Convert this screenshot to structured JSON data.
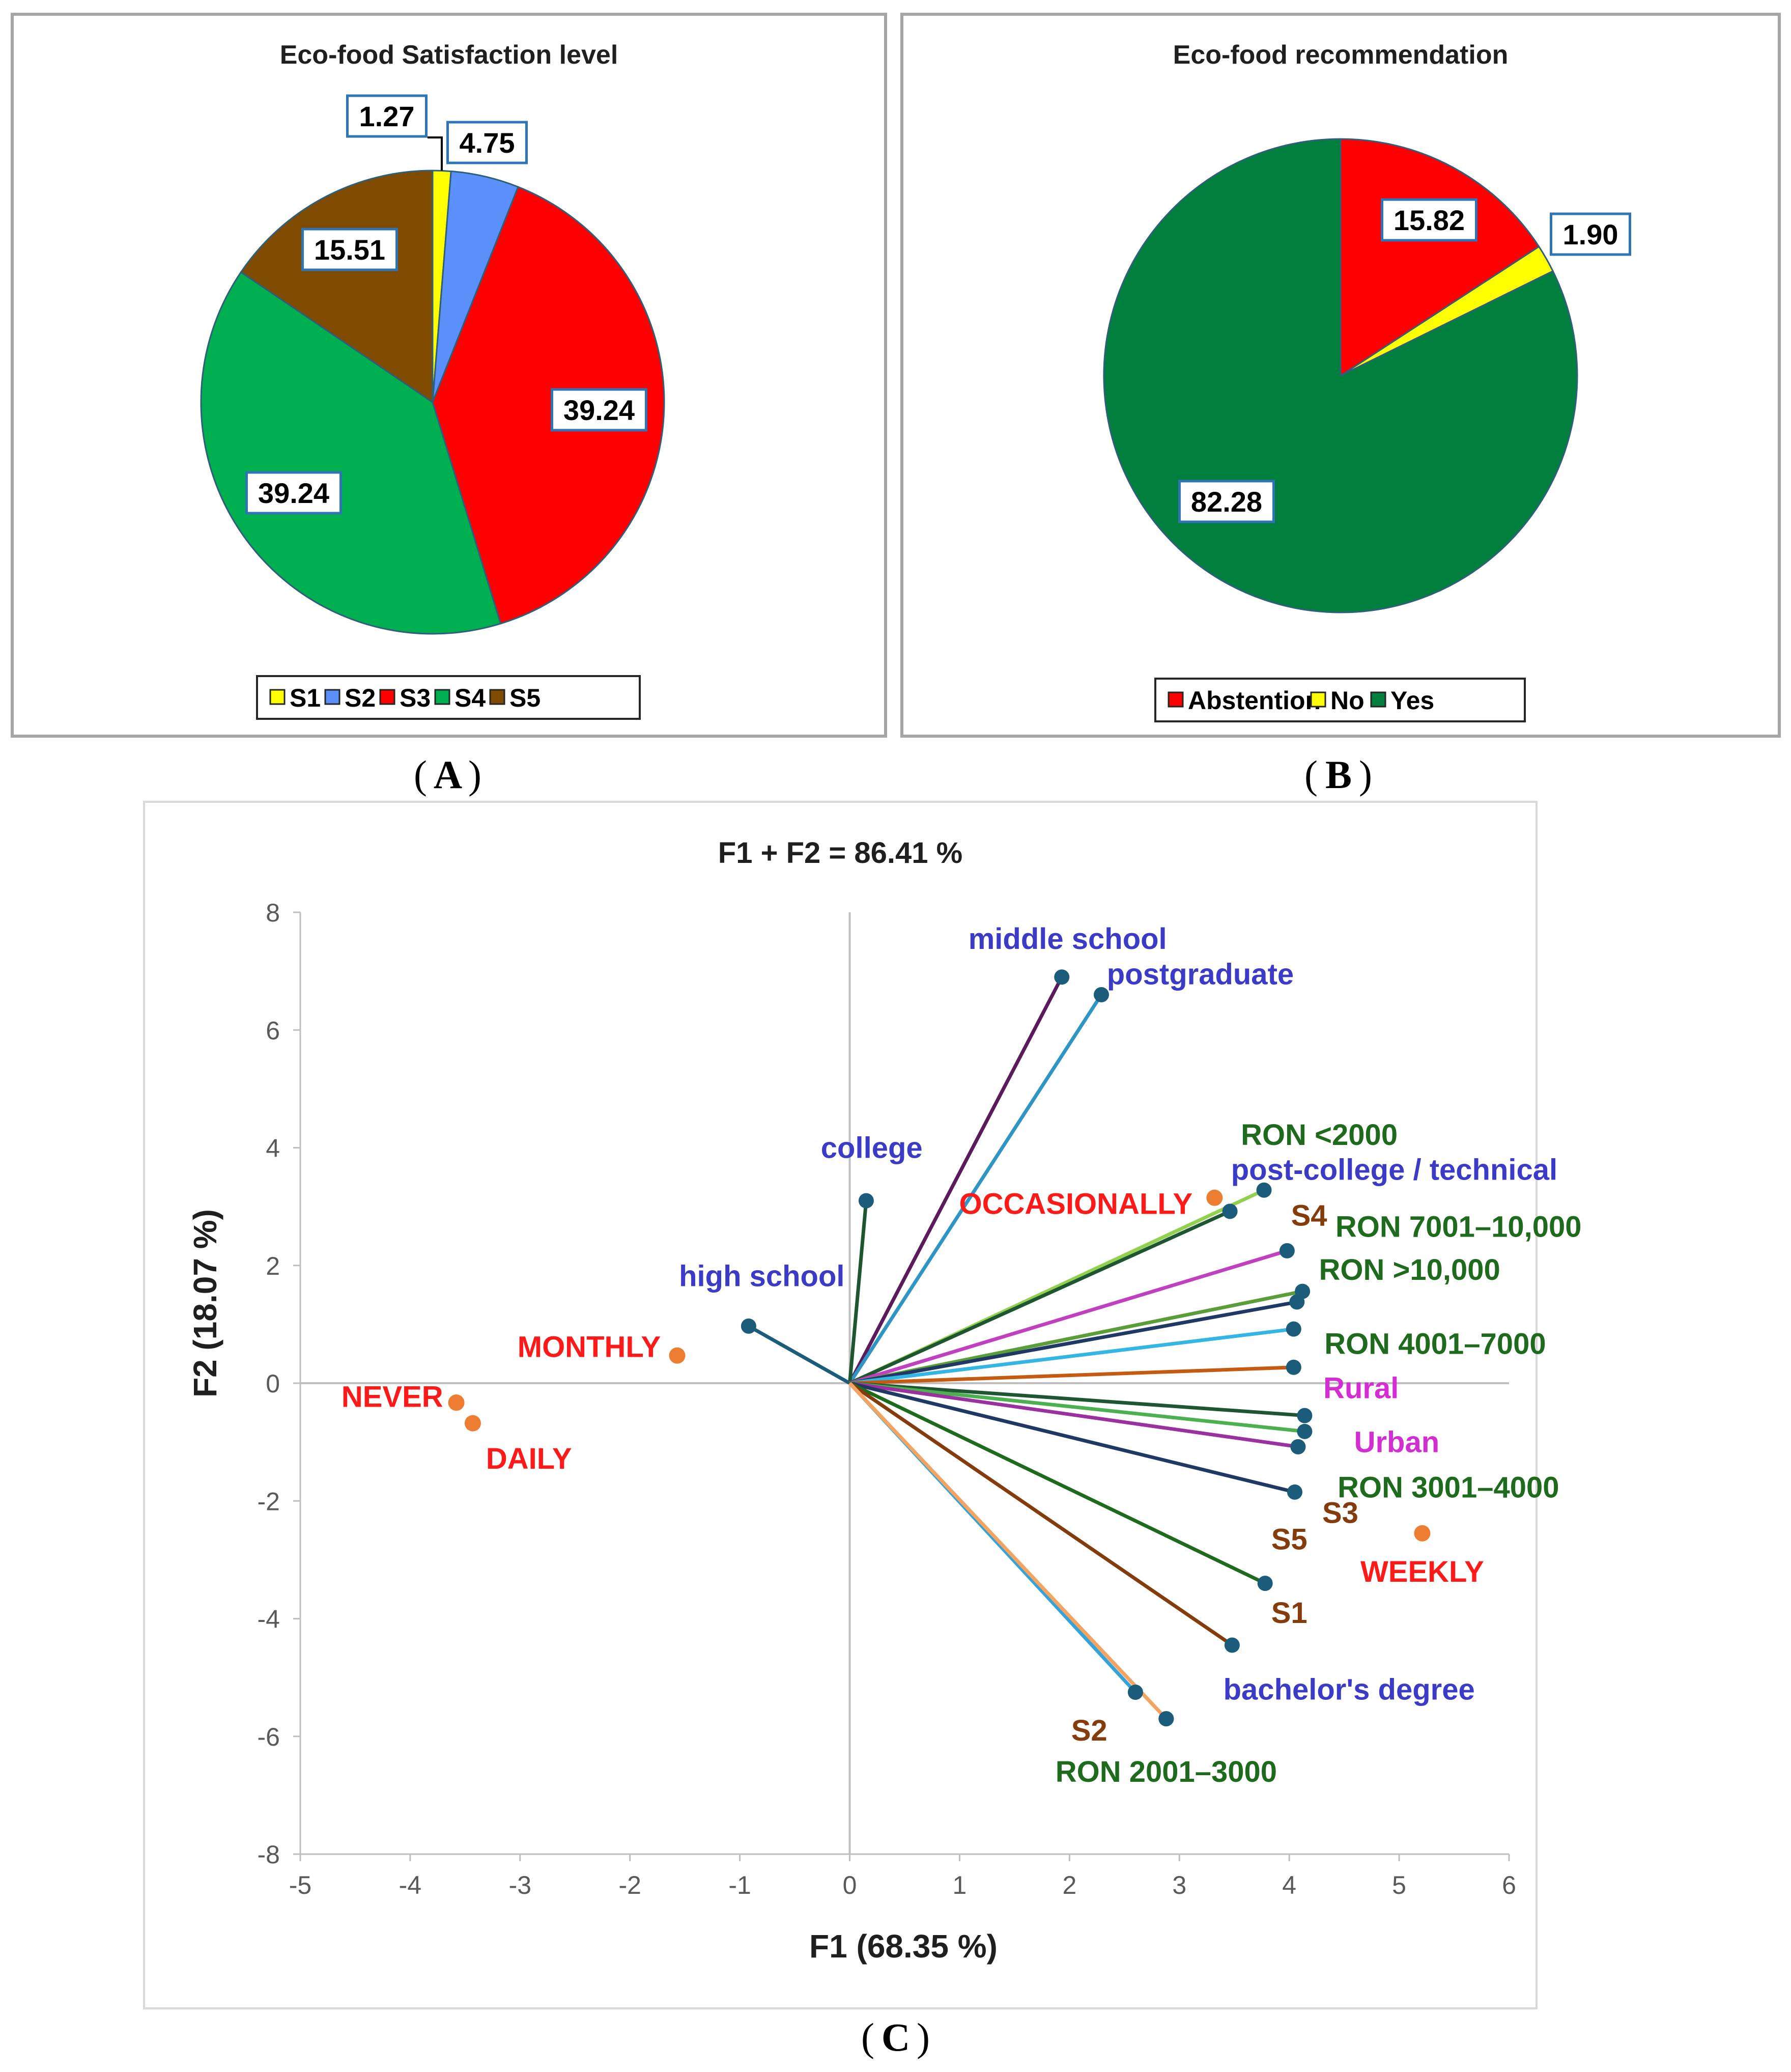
{
  "captions": {
    "a": "A",
    "b": "B",
    "c": "C"
  },
  "chart_data": [
    {
      "id": "A",
      "type": "pie",
      "title": "Eco-food Satisfaction level",
      "categories": [
        "S1",
        "S2",
        "S3",
        "S4",
        "S5"
      ],
      "values": [
        1.27,
        4.75,
        39.24,
        39.24,
        15.51
      ],
      "value_labels": [
        "1.27",
        "4.75",
        "39.24",
        "39.24",
        "15.51"
      ],
      "colors": [
        "#ffff00",
        "#5b8ff9",
        "#ff0000",
        "#00b050",
        "#7f4b00"
      ],
      "legend": "bottom"
    },
    {
      "id": "B",
      "type": "pie",
      "title": "Eco-food recommendation",
      "categories": [
        "Abstention",
        "No",
        "Yes"
      ],
      "values": [
        15.82,
        1.9,
        82.28
      ],
      "value_labels": [
        "15.82",
        "1.90",
        "82.28"
      ],
      "colors": [
        "#ff0000",
        "#ffff00",
        "#00803c"
      ],
      "legend": "bottom"
    },
    {
      "id": "C",
      "type": "scatter",
      "title": "F1 + F2 = 86.41 %",
      "xlabel": "F1 (68.35 %)",
      "ylabel": "F2 (18.07 %)",
      "xlim": [
        -5,
        6
      ],
      "ylim": [
        -8,
        8
      ],
      "xticks": [
        -5,
        -4,
        -3,
        -2,
        -1,
        0,
        1,
        2,
        3,
        4,
        5,
        6
      ],
      "yticks": [
        -8,
        -6,
        -4,
        -2,
        0,
        2,
        4,
        6,
        8
      ],
      "grid": false,
      "variables": [
        {
          "label": "middle school",
          "x": 1.93,
          "y": 6.9,
          "color": "#3b3bc8",
          "line": "#5b1a5b",
          "anchor": "start",
          "dx": -0.85,
          "dy": 0.65
        },
        {
          "label": "postgraduate",
          "x": 2.29,
          "y": 6.6,
          "color": "#3b3bc8",
          "line": "#2e95c4",
          "anchor": "start",
          "dx": 0.05,
          "dy": 0.35
        },
        {
          "label": "college",
          "x": 0.15,
          "y": 3.1,
          "color": "#3b3bc8",
          "line": "#1e5631",
          "anchor": "middle",
          "dx": 0.05,
          "dy": 0.9
        },
        {
          "label": "high school",
          "x": -0.92,
          "y": 0.97,
          "color": "#3b3bc8",
          "line": "#1b5c7a",
          "anchor": "middle",
          "dx": 0.12,
          "dy": 0.85
        },
        {
          "label": "post-college / technical",
          "x": 3.77,
          "y": 3.28,
          "color": "#3b3bc8",
          "line": "#92d050",
          "anchor": "start",
          "dx": -0.3,
          "dy": 0.35
        },
        {
          "label": "RON <2000",
          "x": 3.46,
          "y": 2.92,
          "color": "#1e6b1e",
          "line": "#1e5631",
          "anchor": "start",
          "dx": 0.1,
          "dy": 1.3
        },
        {
          "label": "S4",
          "x": 3.98,
          "y": 2.25,
          "color": "#843c0c",
          "line": "#c040c0",
          "anchor": "middle",
          "dx": 0.2,
          "dy": 0.6
        },
        {
          "label": "RON 7001–10,000",
          "x": 4.12,
          "y": 1.56,
          "color": "#1e6b1e",
          "line": "#5a9e3a",
          "anchor": "start",
          "dx": 0.3,
          "dy": 1.1
        },
        {
          "label": "RON >10,000",
          "x": 4.07,
          "y": 1.38,
          "color": "#1e6b1e",
          "line": "#1f3864",
          "anchor": "start",
          "dx": 0.2,
          "dy": 0.55
        },
        {
          "label": "RON 4001–7000",
          "x": 4.04,
          "y": 0.92,
          "color": "#1e6b1e",
          "line": "#33b5e5",
          "anchor": "start",
          "dx": 0.28,
          "dy": -0.25
        },
        {
          "label": "Rural",
          "x": 4.04,
          "y": 0.27,
          "color": "#d22ed2",
          "line": "#c55a11",
          "anchor": "start",
          "dx": 0.27,
          "dy": -0.35
        },
        {
          "label": "Urban",
          "x": 4.14,
          "y": -0.55,
          "color": "#d22ed2",
          "line": "#1e5631",
          "anchor": "start",
          "dx": 0.45,
          "dy": -0.45
        },
        {
          "label": "RON 3001–4000",
          "x": 4.14,
          "y": -0.82,
          "color": "#1e6b1e",
          "line": "#4caf50",
          "anchor": "start",
          "dx": 0.3,
          "dy": -0.95
        },
        {
          "label": "",
          "x": 4.08,
          "y": -1.08,
          "color": "#1e6b1e",
          "line": "#9b30a0",
          "anchor": "start",
          "dx": 0,
          "dy": 0
        },
        {
          "label": "S3",
          "x": 4.05,
          "y": -1.85,
          "color": "#843c0c",
          "line": "#1f3864",
          "anchor": "start",
          "dx": 0.25,
          "dy": -0.35
        },
        {
          "label": "S5",
          "x": 3.78,
          "y": -3.4,
          "color": "#843c0c",
          "line": "#1e6b1e",
          "anchor": "middle",
          "dx": 0.22,
          "dy": 0.75
        },
        {
          "label": "S1",
          "x": 3.48,
          "y": -4.45,
          "color": "#843c0c",
          "line": "#843c0c",
          "anchor": "middle",
          "dx": 0.52,
          "dy": 0.55
        },
        {
          "label": "S2",
          "x": 2.6,
          "y": -5.25,
          "color": "#843c0c",
          "line": "#33a3d9",
          "anchor": "middle",
          "dx": -0.42,
          "dy": -0.65
        },
        {
          "label": "bachelor's degree",
          "x": 2.88,
          "y": -5.7,
          "color": "#3b3bc8",
          "line": "#f4a460",
          "anchor": "start",
          "dx": 0.52,
          "dy": 0.5
        },
        {
          "label": "RON 2001–3000",
          "x": 2.88,
          "y": -5.7,
          "color": "#1e6b1e",
          "line": "#f4a460",
          "anchor": "middle",
          "dx": 0.0,
          "dy": -0.9
        }
      ],
      "observations": [
        {
          "label": "OCCASIONALLY",
          "x": 3.32,
          "y": 3.15,
          "color": "#ff1a1a",
          "anchor": "end",
          "dx": -0.2,
          "dy": -0.1
        },
        {
          "label": "MONTHLY",
          "x": -1.57,
          "y": 0.47,
          "color": "#ff1a1a",
          "anchor": "end",
          "dx": -0.15,
          "dy": 0.15
        },
        {
          "label": "NEVER",
          "x": -3.58,
          "y": -0.33,
          "color": "#ff1a1a",
          "anchor": "end",
          "dx": -0.12,
          "dy": 0.1
        },
        {
          "label": "DAILY",
          "x": -3.43,
          "y": -0.68,
          "color": "#ff1a1a",
          "anchor": "start",
          "dx": 0.12,
          "dy": -0.6
        },
        {
          "label": "WEEKLY",
          "x": 5.21,
          "y": -2.55,
          "color": "#ff1a1a",
          "anchor": "middle",
          "dx": 0.0,
          "dy": -0.65
        }
      ],
      "observation_color": "#ed7d31",
      "variable_color": "#1b5c7a"
    }
  ]
}
